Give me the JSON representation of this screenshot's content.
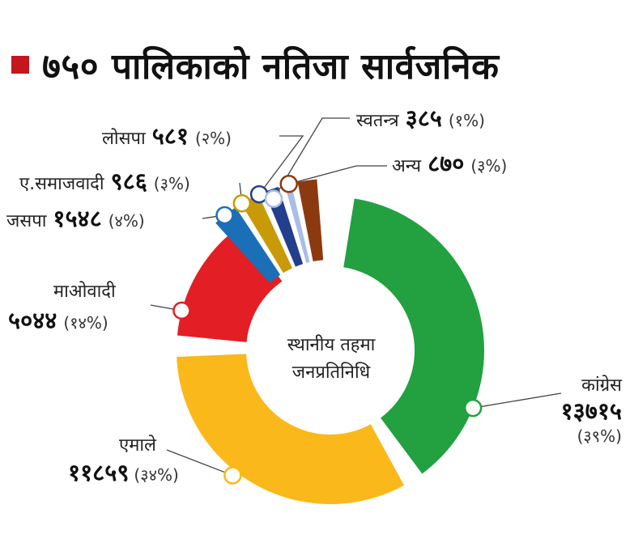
{
  "title": "७५० पालिकाको नतिजा सार्वजनिक",
  "center_label": [
    "स्थानीय तहमा",
    "जनप्रतिनिधि"
  ],
  "colors": {
    "title_marker": "#c4161c",
    "congress": "#23a040",
    "uml": "#fbb81a",
    "maoist": "#e31e24",
    "jaspa": "#1b6fb7",
    "samajwadi": "#c99a07",
    "losapa": "#213f8c",
    "independent": "#a9bde6",
    "others": "#8b3a0f"
  },
  "labels": {
    "congress": {
      "name": "कांग्रेस",
      "value": "१३७१५",
      "pct": "(३९%)"
    },
    "uml": {
      "name": "एमाले",
      "value": "११८५९",
      "pct": "(३४%)"
    },
    "maoist": {
      "name": "माओवादी",
      "value": "५०४४",
      "pct": "(१४%)"
    },
    "jaspa": {
      "name": "जसपा",
      "value": "१५४८",
      "pct": "(४%)"
    },
    "samajwadi": {
      "name": "ए.समाजवादी",
      "value": "९८६",
      "pct": "(३%)"
    },
    "losapa": {
      "name": "लोसपा",
      "value": "५८१",
      "pct": "(२%)"
    },
    "independent": {
      "name": "स्वतन्त्र",
      "value": "३८५",
      "pct": "(१%)"
    },
    "others": {
      "name": "अन्य",
      "value": "८७०",
      "pct": "(३%)"
    }
  },
  "chart_data": {
    "type": "pie",
    "title": "७५० पालिकाको नतिजा सार्वजनिक",
    "center_text": "स्थानीय तहमा जनप्रतिनिधि",
    "categories": [
      "कांग्रेस",
      "एमाले",
      "माओवादी",
      "जसपा",
      "ए.समाजवादी",
      "लोसपा",
      "स्वतन्त्र",
      "अन्य"
    ],
    "values": [
      13715,
      11859,
      5044,
      1548,
      986,
      581,
      385,
      870
    ],
    "percent": [
      39,
      34,
      14,
      4,
      3,
      2,
      1,
      3
    ],
    "colors": [
      "#23a040",
      "#fbb81a",
      "#e31e24",
      "#1b6fb7",
      "#c99a07",
      "#213f8c",
      "#a9bde6",
      "#8b3a0f"
    ],
    "donut": true,
    "legend": "callout-labels"
  }
}
